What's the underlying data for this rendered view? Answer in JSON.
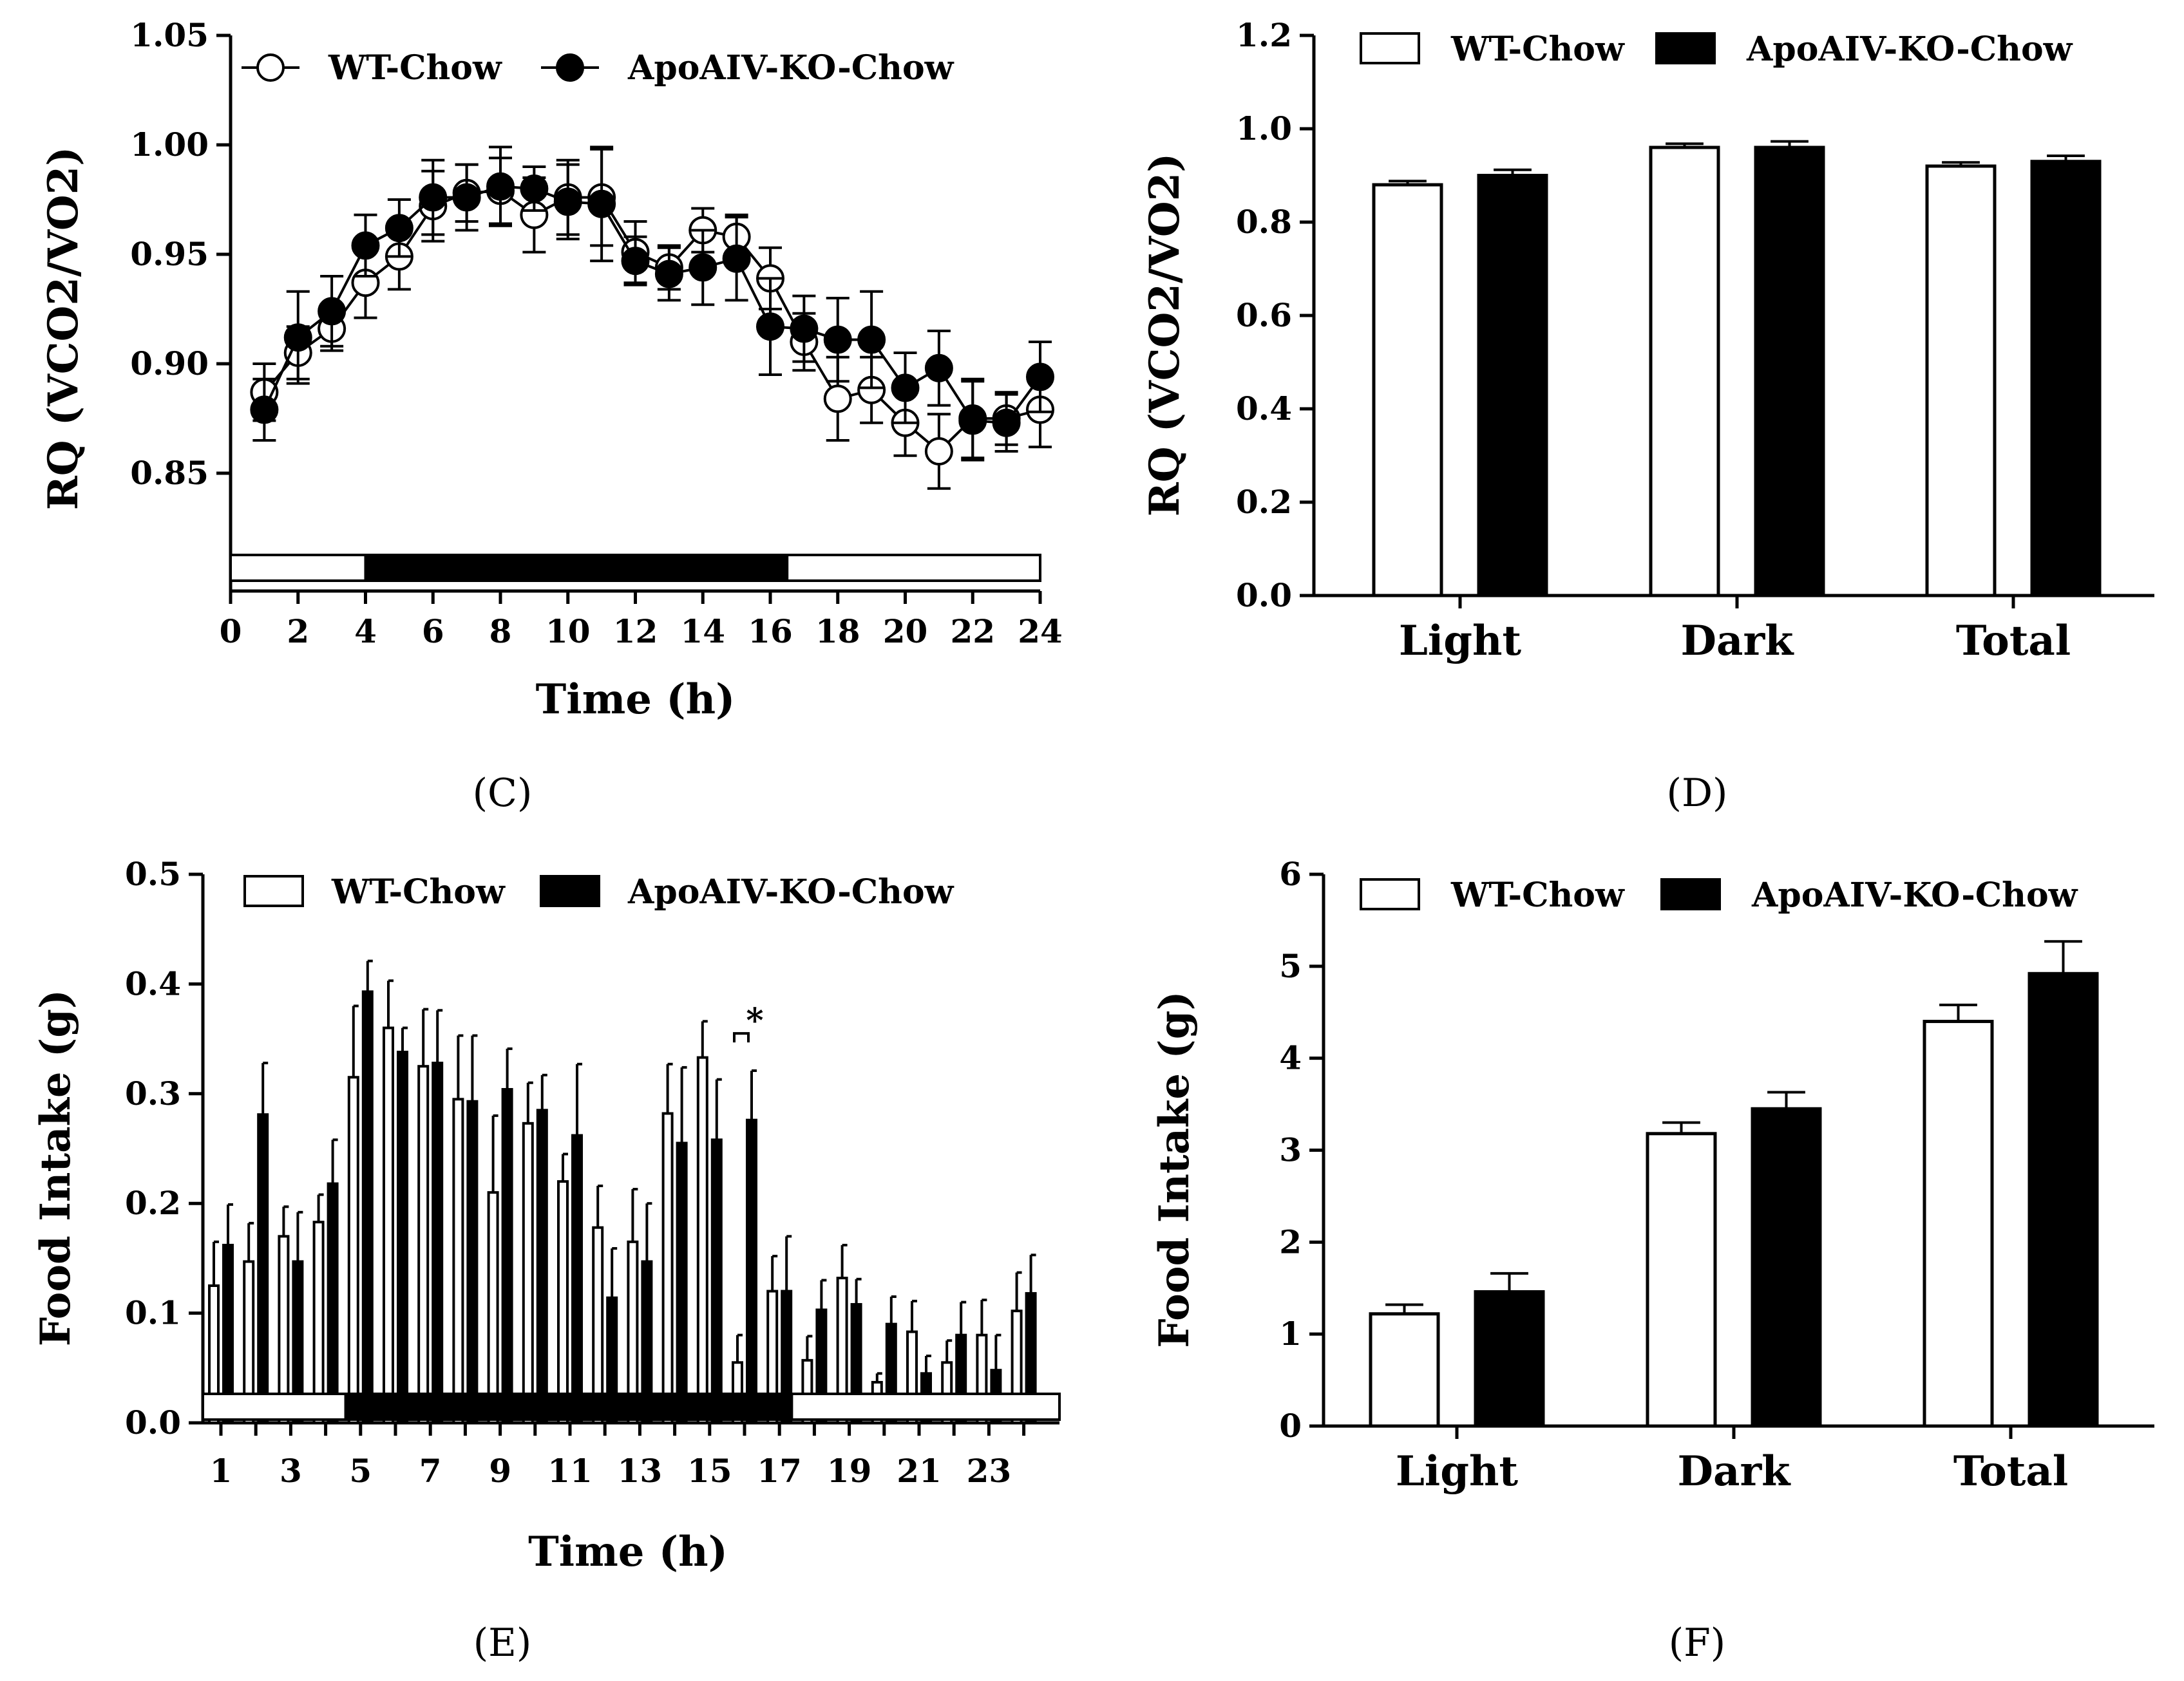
{
  "figure": {
    "panel_labels": [
      "(C)",
      "(D)",
      "(E)",
      "(F)"
    ],
    "light_dark_bar": [
      {
        "phase": "light",
        "from": 0,
        "to": 4
      },
      {
        "phase": "dark",
        "from": 4,
        "to": 16.5
      },
      {
        "phase": "light",
        "from": 16.5,
        "to": 24
      }
    ],
    "colors": {
      "wt": "#ffffff",
      "ko": "#000000",
      "axis": "#000000"
    }
  },
  "chart_data": [
    {
      "id": "C",
      "type": "line",
      "title": "",
      "xlabel": "Time  (h)",
      "ylabel": "RQ (VCO2/VO2)",
      "xlim": [
        0,
        24
      ],
      "ylim": [
        0.8,
        1.05
      ],
      "xticks": [
        "0",
        "2",
        "4",
        "6",
        "8",
        "10",
        "12",
        "14",
        "16",
        "18",
        "20",
        "22",
        "24"
      ],
      "yticks": [
        "0.85",
        "0.90",
        "0.95",
        "1.00",
        "1.05"
      ],
      "x": [
        1,
        2,
        3,
        4,
        5,
        6,
        7,
        8,
        9,
        10,
        11,
        12,
        13,
        14,
        15,
        16,
        17,
        18,
        19,
        20,
        21,
        22,
        23,
        24
      ],
      "series": [
        {
          "name": "WT-Chow",
          "marker": "open-circle",
          "values": [
            0.887,
            0.905,
            0.916,
            0.937,
            0.949,
            0.972,
            0.978,
            0.979,
            0.968,
            0.976,
            0.976,
            0.951,
            0.944,
            0.961,
            0.958,
            0.939,
            0.91,
            0.884,
            0.888,
            0.873,
            0.86,
            0.875,
            0.875,
            0.879
          ],
          "errors": [
            0.013,
            0.012,
            0.01,
            0.016,
            0.015,
            0.016,
            0.013,
            0.015,
            0.017,
            0.017,
            0.022,
            0.014,
            0.01,
            0.01,
            0.01,
            0.014,
            0.013,
            0.019,
            0.015,
            0.015,
            0.017,
            0.018,
            0.012,
            0.017
          ]
        },
        {
          "name": "ApoAIV-KO-Chow",
          "marker": "filled-circle",
          "values": [
            0.879,
            0.912,
            0.924,
            0.954,
            0.962,
            0.976,
            0.976,
            0.981,
            0.98,
            0.974,
            0.973,
            0.947,
            0.941,
            0.944,
            0.948,
            0.917,
            0.916,
            0.911,
            0.911,
            0.889,
            0.898,
            0.874,
            0.873,
            0.894
          ],
          "errors": [
            0.014,
            0.021,
            0.016,
            0.014,
            0.013,
            0.017,
            0.015,
            0.018,
            0.01,
            0.017,
            0.026,
            0.011,
            0.012,
            0.017,
            0.019,
            0.022,
            0.015,
            0.019,
            0.022,
            0.016,
            0.017,
            0.018,
            0.013,
            0.016
          ]
        }
      ],
      "legend": "top-left"
    },
    {
      "id": "D",
      "type": "bar",
      "title": "",
      "xlabel": "",
      "ylabel": "RQ (VCO2/VO2)",
      "ylim": [
        0,
        1.2
      ],
      "yticks": [
        "0.0",
        "0.2",
        "0.4",
        "0.6",
        "0.8",
        "1.0",
        "1.2"
      ],
      "categories": [
        "Light",
        "Dark",
        "Total"
      ],
      "series": [
        {
          "name": "WT-Chow",
          "values": [
            0.88,
            0.96,
            0.92
          ],
          "errors": [
            0.008,
            0.008,
            0.008
          ]
        },
        {
          "name": "ApoAIV-KO-Chow",
          "values": [
            0.9,
            0.96,
            0.93
          ],
          "errors": [
            0.012,
            0.013,
            0.012
          ]
        }
      ],
      "legend": "top"
    },
    {
      "id": "E",
      "type": "bar",
      "title": "",
      "xlabel": "Time (h)",
      "ylabel": "Food Intake (g)",
      "ylim": [
        0,
        0.5
      ],
      "yticks": [
        "0.0",
        "0.1",
        "0.2",
        "0.3",
        "0.4",
        "0.5"
      ],
      "xticks": [
        "1",
        "3",
        "5",
        "7",
        "9",
        "11",
        "13",
        "15",
        "17",
        "19",
        "21",
        "23"
      ],
      "categories": [
        1,
        2,
        3,
        4,
        5,
        6,
        7,
        8,
        9,
        10,
        11,
        12,
        13,
        14,
        15,
        16,
        17,
        18,
        19,
        20,
        21,
        22,
        23,
        24
      ],
      "series": [
        {
          "name": "WT-Chow",
          "values": [
            0.125,
            0.147,
            0.17,
            0.183,
            0.315,
            0.36,
            0.325,
            0.295,
            0.21,
            0.273,
            0.22,
            0.178,
            0.165,
            0.282,
            0.333,
            0.055,
            0.12,
            0.057,
            0.132,
            0.037,
            0.083,
            0.055,
            0.08,
            0.102
          ],
          "errors": [
            0.04,
            0.035,
            0.027,
            0.025,
            0.065,
            0.043,
            0.052,
            0.058,
            0.07,
            0.037,
            0.025,
            0.038,
            0.048,
            0.045,
            0.033,
            0.025,
            0.032,
            0.022,
            0.03,
            0.008,
            0.028,
            0.02,
            0.032,
            0.035
          ]
        },
        {
          "name": "ApoAIV-KO-Chow",
          "values": [
            0.162,
            0.281,
            0.147,
            0.218,
            0.393,
            0.338,
            0.328,
            0.293,
            0.304,
            0.285,
            0.262,
            0.114,
            0.147,
            0.255,
            0.258,
            0.276,
            0.12,
            0.103,
            0.108,
            0.09,
            0.045,
            0.08,
            0.048,
            0.118
          ],
          "errors": [
            0.037,
            0.047,
            0.045,
            0.04,
            0.028,
            0.022,
            0.048,
            0.06,
            0.037,
            0.032,
            0.065,
            0.045,
            0.053,
            0.069,
            0.055,
            0.045,
            0.05,
            0.027,
            0.023,
            0.025,
            0.016,
            0.03,
            0.032,
            0.035
          ]
        }
      ],
      "annotations": [
        {
          "text": "*",
          "at_x": 16
        }
      ],
      "legend": "top"
    },
    {
      "id": "F",
      "type": "bar",
      "title": "",
      "xlabel": "",
      "ylabel": "Food Intake (g)",
      "ylim": [
        0,
        6
      ],
      "yticks": [
        "0",
        "1",
        "2",
        "3",
        "4",
        "5",
        "6"
      ],
      "categories": [
        "Light",
        "Dark",
        "Total"
      ],
      "series": [
        {
          "name": "WT-Chow",
          "values": [
            1.22,
            3.18,
            4.4
          ],
          "errors": [
            0.1,
            0.12,
            0.18
          ]
        },
        {
          "name": "ApoAIV-KO-Chow",
          "values": [
            1.46,
            3.45,
            4.92
          ],
          "errors": [
            0.2,
            0.18,
            0.35
          ]
        }
      ],
      "legend": "top"
    }
  ]
}
